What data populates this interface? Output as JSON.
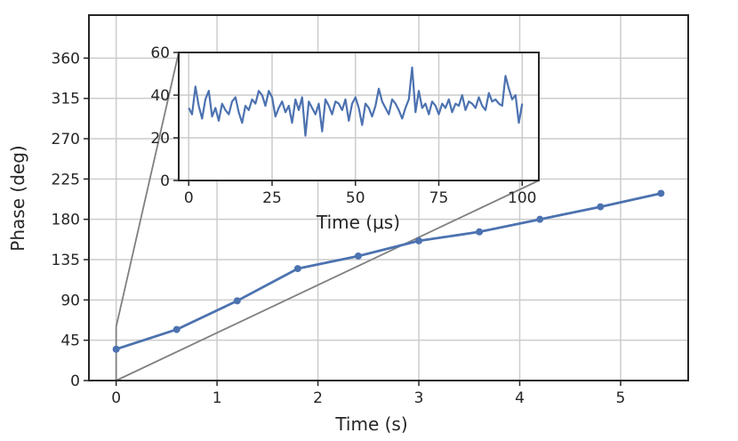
{
  "chart_data": [
    {
      "type": "line",
      "xlabel": "Time (s)",
      "ylabel": "Phase (deg)",
      "xlim": [
        -0.27,
        5.67
      ],
      "ylim": [
        0,
        408
      ],
      "xticks": [
        0,
        1,
        2,
        3,
        4,
        5
      ],
      "yticks": [
        0,
        45,
        90,
        135,
        180,
        225,
        270,
        315,
        360
      ],
      "grid": true,
      "series": [
        {
          "x": [
            0,
            0.6,
            1.2,
            1.8,
            2.4,
            3.0,
            3.6,
            4.2,
            4.8,
            5.4
          ],
          "y": [
            35,
            57,
            89,
            125,
            139,
            156,
            166,
            180,
            194,
            209
          ],
          "color": "#4c72b0"
        }
      ]
    },
    {
      "type": "line",
      "placement": "inset",
      "xlabel": "Time (μs)",
      "ylabel": "",
      "xlim": [
        -3,
        105
      ],
      "ylim": [
        0,
        60
      ],
      "xticks": [
        0,
        25,
        50,
        75,
        100
      ],
      "yticks": [
        0,
        20,
        40,
        60
      ],
      "grid": true,
      "series": [
        {
          "x": [
            0,
            1,
            2,
            3,
            4,
            5,
            6,
            7,
            8,
            9,
            10,
            11,
            12,
            13,
            14,
            15,
            16,
            17,
            18,
            19,
            20,
            21,
            22,
            23,
            24,
            25,
            26,
            27,
            28,
            29,
            30,
            31,
            32,
            33,
            34,
            35,
            36,
            37,
            38,
            39,
            40,
            41,
            42,
            43,
            44,
            45,
            46,
            47,
            48,
            49,
            50,
            51,
            52,
            53,
            54,
            55,
            56,
            57,
            58,
            59,
            60,
            61,
            62,
            63,
            64,
            65,
            66,
            67,
            68,
            69,
            70,
            71,
            72,
            73,
            74,
            75,
            76,
            77,
            78,
            79,
            80,
            81,
            82,
            83,
            84,
            85,
            86,
            87,
            88,
            89,
            90,
            91,
            92,
            93,
            94,
            95,
            96,
            97,
            98,
            99,
            100
          ],
          "y": [
            34,
            31,
            44,
            35,
            29,
            38,
            42,
            30,
            34,
            28,
            36,
            33,
            31,
            37,
            39,
            32,
            27,
            35,
            33,
            38,
            36,
            42,
            40,
            35,
            42,
            39,
            30,
            34,
            37,
            32,
            35,
            27,
            38,
            33,
            39,
            21,
            37,
            34,
            31,
            36,
            23,
            38,
            35,
            31,
            37,
            36,
            33,
            38,
            28,
            36,
            39,
            34,
            26,
            36,
            34,
            30,
            35,
            43,
            37,
            34,
            31,
            38,
            36,
            33,
            29,
            34,
            38,
            53,
            32,
            42,
            34,
            36,
            31,
            37,
            35,
            31,
            36,
            34,
            38,
            32,
            36,
            35,
            40,
            33,
            37,
            36,
            34,
            39,
            35,
            33,
            41,
            37,
            38,
            36,
            35,
            49,
            43,
            38,
            40,
            27,
            36
          ],
          "color": "#4c72b0"
        }
      ]
    }
  ]
}
